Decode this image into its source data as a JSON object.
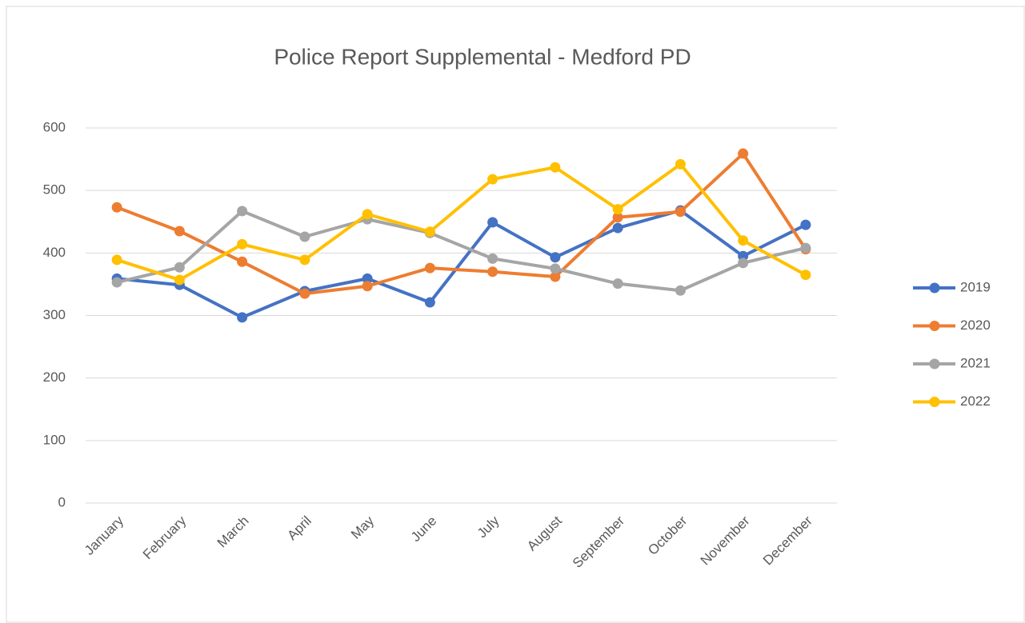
{
  "chart_data": {
    "type": "line",
    "title": "Police Report Supplemental - Medford PD",
    "categories": [
      "January",
      "February",
      "March",
      "April",
      "May",
      "June",
      "July",
      "August",
      "September",
      "October",
      "November",
      "December"
    ],
    "series": [
      {
        "name": "2019",
        "color": "#4472c4",
        "values": [
          359,
          349,
          297,
          339,
          359,
          321,
          449,
          393,
          440,
          468,
          395,
          445
        ]
      },
      {
        "name": "2020",
        "color": "#ed7d31",
        "values": [
          473,
          435,
          386,
          335,
          347,
          376,
          370,
          362,
          457,
          466,
          559,
          406
        ]
      },
      {
        "name": "2021",
        "color": "#a5a5a5",
        "values": [
          353,
          377,
          467,
          426,
          454,
          432,
          391,
          375,
          351,
          340,
          384,
          408
        ]
      },
      {
        "name": "2022",
        "color": "#ffc000",
        "values": [
          389,
          357,
          414,
          389,
          462,
          434,
          518,
          537,
          470,
          542,
          420,
          365
        ]
      }
    ],
    "ylim": [
      0,
      600
    ],
    "yticks": [
      0,
      100,
      200,
      300,
      400,
      500,
      600
    ],
    "grid": true,
    "legend": "right"
  }
}
